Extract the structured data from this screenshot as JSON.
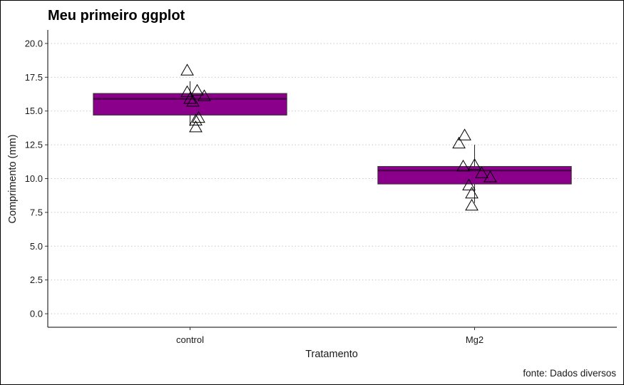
{
  "chart_data": {
    "type": "boxplot",
    "title": "Meu primeiro ggplot",
    "xlabel": "Tratamento",
    "ylabel": "Comprimento (mm)",
    "caption": "fonte: Dados diversos",
    "categories": [
      "control",
      "Mg2"
    ],
    "ylim": [
      -1,
      21
    ],
    "yticks": [
      0,
      2.5,
      5,
      7.5,
      10,
      12.5,
      15,
      17.5,
      20
    ],
    "ytick_labels": [
      "0.0",
      "2.5",
      "5.0",
      "7.5",
      "10.0",
      "12.5",
      "15.0",
      "17.5",
      "20.0"
    ],
    "grid": "horizontal dotted",
    "box_color": "#8B008B",
    "boxes": [
      {
        "category": "control",
        "q1": 14.7,
        "median": 15.9,
        "q3": 16.3,
        "whisker_low": 13.9,
        "whisker_high": 17.2
      },
      {
        "category": "Mg2",
        "q1": 9.6,
        "median": 10.6,
        "q3": 10.9,
        "whisker_low": 8.2,
        "whisker_high": 12.5
      }
    ],
    "points": [
      {
        "category": "control",
        "x_offset": -0.01,
        "y": 18.0
      },
      {
        "category": "control",
        "x_offset": -0.01,
        "y": 16.4
      },
      {
        "category": "control",
        "x_offset": 0.025,
        "y": 16.5
      },
      {
        "category": "control",
        "x_offset": 0.05,
        "y": 16.1
      },
      {
        "category": "control",
        "x_offset": 0.0,
        "y": 15.9
      },
      {
        "category": "control",
        "x_offset": 0.01,
        "y": 15.7
      },
      {
        "category": "control",
        "x_offset": 0.03,
        "y": 14.5
      },
      {
        "category": "control",
        "x_offset": 0.02,
        "y": 14.3
      },
      {
        "category": "control",
        "x_offset": 0.02,
        "y": 13.8
      },
      {
        "category": "Mg2",
        "x_offset": -0.035,
        "y": 13.2
      },
      {
        "category": "Mg2",
        "x_offset": -0.055,
        "y": 12.6
      },
      {
        "category": "Mg2",
        "x_offset": -0.04,
        "y": 10.9
      },
      {
        "category": "Mg2",
        "x_offset": 0.0,
        "y": 11.0
      },
      {
        "category": "Mg2",
        "x_offset": 0.025,
        "y": 10.4
      },
      {
        "category": "Mg2",
        "x_offset": 0.055,
        "y": 10.1
      },
      {
        "category": "Mg2",
        "x_offset": -0.02,
        "y": 9.5
      },
      {
        "category": "Mg2",
        "x_offset": -0.01,
        "y": 8.9
      },
      {
        "category": "Mg2",
        "x_offset": -0.01,
        "y": 8.0
      }
    ]
  }
}
